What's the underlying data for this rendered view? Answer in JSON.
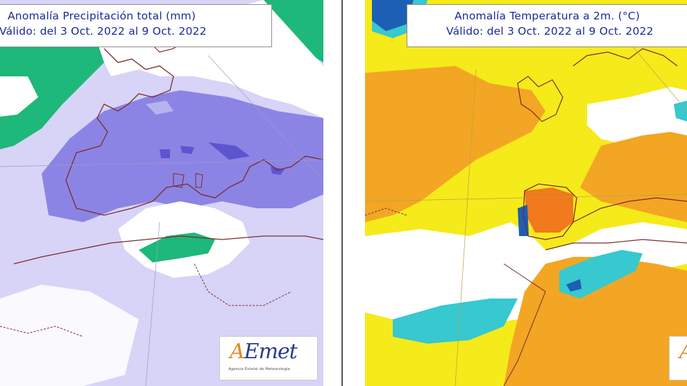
{
  "panels": [
    {
      "title_line1": "Anomalía Precipitación total (mm)",
      "title_line2": "Válido: del 3 Oct. 2022 al 9 Oct. 2022",
      "colors": {
        "base": "#d7d4f7",
        "wet": "#b7b3f0",
        "wetter": "#8c84e4",
        "wettest": "#5d55cf",
        "dry": "#ffffff",
        "very_dry": "#1db87a"
      }
    },
    {
      "title_line1": "Anomalía Temperatura a 2m. (°C)",
      "title_line2": "Válido: del 3 Oct. 2022 al 9 Oct. 2022",
      "colors": {
        "base": "#f5ea1a",
        "warm": "#f2a623",
        "warmer": "#f07a1c",
        "neutral": "#ffffff",
        "cool": "#37c8d0",
        "cold": "#1c5fb4"
      }
    }
  ],
  "logo": {
    "accent_letter": "A",
    "rest": "Emet",
    "subtitle": "Agencia Estatal de Meteorología"
  }
}
